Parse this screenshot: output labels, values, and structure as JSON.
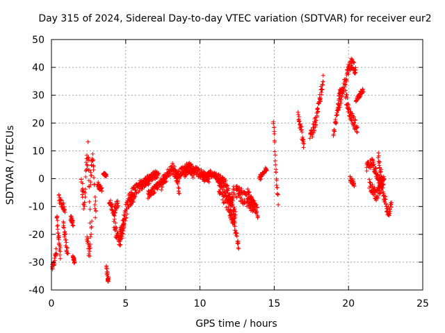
{
  "chart_data": {
    "type": "scatter",
    "title": "Day 315 of 2024, Sidereal Day-to-day VTEC variation (SDTVAR) for receiver eur2",
    "xlabel": "GPS time / hours",
    "ylabel": "SDTVAR / TECUs",
    "xlim": [
      0,
      25
    ],
    "ylim": [
      -40,
      50
    ],
    "xticks": [
      0,
      5,
      10,
      15,
      20,
      25
    ],
    "yticks": [
      -40,
      -30,
      -20,
      -10,
      0,
      10,
      20,
      30,
      40,
      50
    ],
    "xtick_labels": [
      "0",
      "5",
      "10",
      "15",
      "20",
      "25"
    ],
    "ytick_labels": [
      "-40",
      "-30",
      "-20",
      "-10",
      "0",
      "10",
      "20",
      "30",
      "40",
      "50"
    ],
    "grid": true,
    "marker": "+",
    "color": "#ff0000",
    "series": [
      {
        "name": "SDTVAR",
        "segments": [
          {
            "x0": 0.05,
            "x1": 0.35,
            "y": [
              -32,
              -31,
              -30,
              -28,
              -26
            ],
            "spread": 3
          },
          {
            "x0": 0.35,
            "x1": 0.6,
            "y": [
              -14,
              -16,
              -20,
              -24,
              -28
            ],
            "spread": 4
          },
          {
            "x0": 0.5,
            "x1": 0.9,
            "y": [
              -7,
              -8,
              -9,
              -10,
              -12
            ],
            "spread": 3
          },
          {
            "x0": 0.8,
            "x1": 1.1,
            "y": [
              -15,
              -20,
              -24,
              -27
            ],
            "spread": 4
          },
          {
            "x0": 1.3,
            "x1": 1.45,
            "y": [
              -14,
              -15,
              -16
            ],
            "spread": 2
          },
          {
            "x0": 1.45,
            "x1": 1.55,
            "y": [
              -28,
              -29,
              -30
            ],
            "spread": 1
          },
          {
            "x0": 2.0,
            "x1": 2.6,
            "y": [
              0,
              -5,
              -10,
              5,
              10,
              -15
            ],
            "spread": 8
          },
          {
            "x0": 2.4,
            "x1": 2.7,
            "y": [
              -20,
              -25,
              -27,
              -15
            ],
            "spread": 5
          },
          {
            "x0": 2.6,
            "x1": 3.0,
            "y": [
              0,
              4,
              8,
              -5,
              -15
            ],
            "spread": 8
          },
          {
            "x0": 3.1,
            "x1": 3.4,
            "y": [
              -2,
              -3,
              -4
            ],
            "spread": 2
          },
          {
            "x0": 3.5,
            "x1": 3.7,
            "y": [
              2,
              1
            ],
            "spread": 1
          },
          {
            "x0": 3.7,
            "x1": 3.85,
            "y": [
              -32,
              -35,
              -37
            ],
            "spread": 2
          },
          {
            "x0": 3.9,
            "x1": 4.5,
            "y": [
              -8,
              -10,
              -12,
              -10,
              -9
            ],
            "spread": 3
          },
          {
            "x0": 4.2,
            "x1": 4.9,
            "y": [
              -15,
              -20,
              -22,
              -18,
              -16
            ],
            "spread": 5
          },
          {
            "x0": 4.6,
            "x1": 5.6,
            "y": [
              -22,
              -18,
              -12,
              -8,
              -6,
              -5
            ],
            "spread": 6
          },
          {
            "x0": 5.3,
            "x1": 6.6,
            "y": [
              -8,
              -5,
              -3,
              -2,
              -1,
              0
            ],
            "spread": 4
          },
          {
            "x0": 6.0,
            "x1": 7.2,
            "y": [
              -3,
              -1,
              0,
              1,
              2
            ],
            "spread": 3
          },
          {
            "x0": 6.5,
            "x1": 7.6,
            "y": [
              -6,
              -4,
              -2,
              0
            ],
            "spread": 3
          },
          {
            "x0": 7.4,
            "x1": 8.6,
            "y": [
              -3,
              0,
              2,
              4,
              2,
              -4
            ],
            "spread": 4
          },
          {
            "x0": 8.4,
            "x1": 9.6,
            "y": [
              0,
              2,
              3,
              4,
              2
            ],
            "spread": 4
          },
          {
            "x0": 9.0,
            "x1": 10.6,
            "y": [
              2,
              4,
              3,
              2,
              1,
              0
            ],
            "spread": 3
          },
          {
            "x0": 10.2,
            "x1": 11.6,
            "y": [
              0,
              1,
              2,
              0,
              -1
            ],
            "spread": 3
          },
          {
            "x0": 11.2,
            "x1": 12.3,
            "y": [
              -2,
              -5,
              -8,
              -10,
              -4
            ],
            "spread": 5
          },
          {
            "x0": 11.6,
            "x1": 12.4,
            "y": [
              -2,
              -4,
              -10,
              -14
            ],
            "spread": 5
          },
          {
            "x0": 12.0,
            "x1": 12.6,
            "y": [
              -12,
              -14,
              -16,
              -20,
              -25
            ],
            "spread": 3
          },
          {
            "x0": 12.4,
            "x1": 13.6,
            "y": [
              -4,
              -6,
              -8,
              -10
            ],
            "spread": 5
          },
          {
            "x0": 13.2,
            "x1": 13.9,
            "y": [
              -5,
              -8,
              -10,
              -12
            ],
            "spread": 4
          },
          {
            "x0": 14.0,
            "x1": 14.5,
            "y": [
              0,
              1,
              2,
              4
            ],
            "spread": 2
          },
          {
            "x0": 14.95,
            "x1": 15.25,
            "y": [
              20,
              15,
              5,
              -2,
              -8
            ],
            "spread": 3
          },
          {
            "x0": 16.6,
            "x1": 17.0,
            "y": [
              23,
              20,
              18,
              15,
              12
            ],
            "spread": 3
          },
          {
            "x0": 17.4,
            "x1": 18.3,
            "y": [
              15,
              17,
              20,
              25,
              30,
              36
            ],
            "spread": 4
          },
          {
            "x0": 19.0,
            "x1": 19.5,
            "y": [
              16,
              20,
              25,
              30,
              32
            ],
            "spread": 3
          },
          {
            "x0": 19.3,
            "x1": 20.5,
            "y": [
              26,
              30,
              35,
              40,
              42,
              38
            ],
            "spread": 4
          },
          {
            "x0": 19.8,
            "x1": 20.6,
            "y": [
              30,
              25,
              22,
              20,
              18
            ],
            "spread": 4
          },
          {
            "x0": 20.5,
            "x1": 21.0,
            "y": [
              28,
              30,
              32
            ],
            "spread": 2
          },
          {
            "x0": 20.1,
            "x1": 20.4,
            "y": [
              0,
              -1,
              -2
            ],
            "spread": 2
          },
          {
            "x0": 21.2,
            "x1": 22.2,
            "y": [
              4,
              5,
              6,
              3,
              0,
              -2
            ],
            "spread": 3
          },
          {
            "x0": 21.4,
            "x1": 22.4,
            "y": [
              -2,
              -4,
              -6,
              -3,
              0
            ],
            "spread": 4
          },
          {
            "x0": 22.0,
            "x1": 22.9,
            "y": [
              8,
              2,
              -5,
              -10,
              -12,
              -8
            ],
            "spread": 4
          }
        ]
      }
    ]
  }
}
